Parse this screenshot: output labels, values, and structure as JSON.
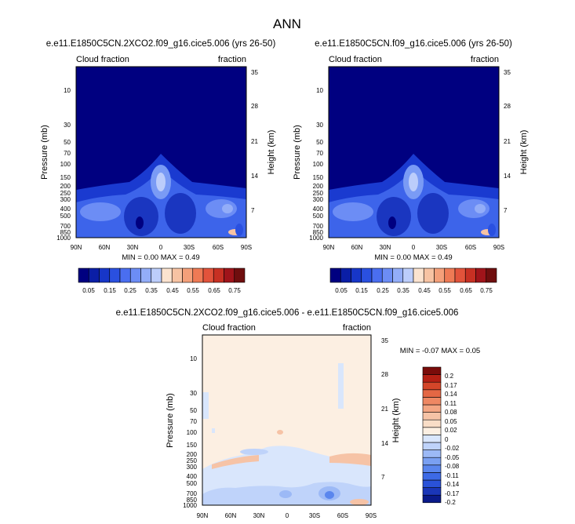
{
  "main_title": "ANN",
  "colors": {
    "abs_scale": [
      "#000080",
      "#0a1ea6",
      "#1736c8",
      "#2a50e0",
      "#4a6ef0",
      "#6c8df5",
      "#93adf8",
      "#bccdfb",
      "#fbe3cf",
      "#f7c3a3",
      "#f4a07a",
      "#ee7a55",
      "#e2533b",
      "#c73023",
      "#a0141a",
      "#6f0e0e"
    ],
    "diff_scale": [
      "#0a1a8a",
      "#1a36b8",
      "#2a52d8",
      "#3d6ae6",
      "#5a86ee",
      "#7aa0f2",
      "#9cb9f6",
      "#bfd3fa",
      "#d9e6fc",
      "#fcefe2",
      "#f9ddc7",
      "#f6c3a6",
      "#f3a683",
      "#ee8863",
      "#e46744",
      "#d44629",
      "#b52014",
      "#7a0c0a"
    ]
  },
  "chart_data": [
    {
      "type": "contour",
      "title": "e.e11.E1850C5CN.2XCO2.f09_g16.cice5.006 (yrs 26-50)",
      "left_label": "Cloud fraction",
      "right_label": "fraction",
      "ylabel": "Pressure (mb)",
      "ylabel_right": "Height (km)",
      "x_ticks": [
        "90N",
        "60N",
        "30N",
        "0",
        "30S",
        "60S",
        "90S"
      ],
      "pressure_ticks": [
        "10",
        "30",
        "50",
        "70",
        "100",
        "150",
        "200",
        "250",
        "300",
        "400",
        "500",
        "700",
        "850",
        "1000"
      ],
      "height_ticks": [
        "35",
        "28",
        "21",
        "14",
        "7"
      ],
      "min_max_text": "MIN =  0.00   MAX =  0.49",
      "colorbar_labels": [
        "0.05",
        "0.15",
        "0.25",
        "0.35",
        "0.45",
        "0.55",
        "0.65",
        "0.75"
      ]
    },
    {
      "type": "contour",
      "title": "e.e11.E1850C5CN.f09_g16.cice5.006 (yrs 26-50)",
      "left_label": "Cloud fraction",
      "right_label": "fraction",
      "ylabel": "Pressure (mb)",
      "ylabel_right": "Height (km)",
      "x_ticks": [
        "90N",
        "60N",
        "30N",
        "0",
        "30S",
        "60S",
        "90S"
      ],
      "pressure_ticks": [
        "10",
        "30",
        "50",
        "70",
        "100",
        "150",
        "200",
        "250",
        "300",
        "400",
        "500",
        "700",
        "850",
        "1000"
      ],
      "height_ticks": [
        "35",
        "28",
        "21",
        "14",
        "7"
      ],
      "min_max_text": "MIN =  0.00   MAX =  0.49",
      "colorbar_labels": [
        "0.05",
        "0.15",
        "0.25",
        "0.35",
        "0.45",
        "0.55",
        "0.65",
        "0.75"
      ]
    },
    {
      "type": "contour",
      "title": "e.e11.E1850C5CN.2XCO2.f09_g16.cice5.006 - e.e11.E1850C5CN.f09_g16.cice5.006",
      "left_label": "Cloud fraction",
      "right_label": "fraction",
      "ylabel": "Pressure (mb)",
      "ylabel_right": "Height (km)",
      "x_ticks": [
        "90N",
        "60N",
        "30N",
        "0",
        "30S",
        "60S",
        "90S"
      ],
      "pressure_ticks": [
        "10",
        "30",
        "50",
        "70",
        "100",
        "150",
        "200",
        "250",
        "300",
        "400",
        "500",
        "700",
        "850",
        "1000"
      ],
      "height_ticks": [
        "35",
        "28",
        "21",
        "14",
        "7"
      ],
      "min_max_text": "MIN =  -0.07   MAX =   0.05",
      "colorbar_labels": [
        "0.2",
        "0.17",
        "0.14",
        "0.11",
        "0.08",
        "0.05",
        "0.02",
        "0",
        "-0.02",
        "-0.05",
        "-0.08",
        "-0.11",
        "-0.14",
        "-0.17",
        "-0.2"
      ]
    }
  ]
}
